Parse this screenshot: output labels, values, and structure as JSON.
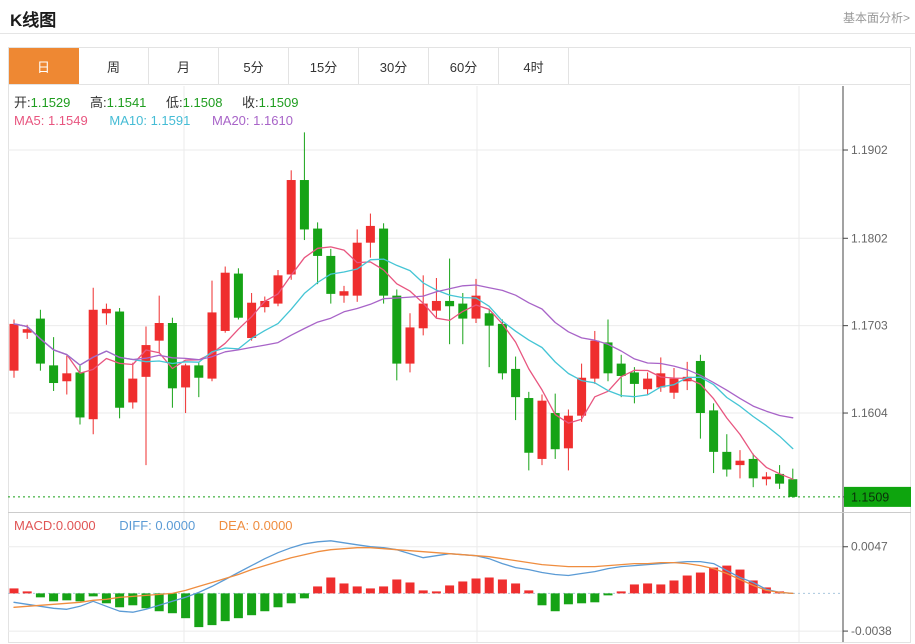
{
  "header": {
    "title": "K线图",
    "link_label": "基本面分析>"
  },
  "tabs": [
    {
      "label": "日",
      "active": true
    },
    {
      "label": "周",
      "active": false
    },
    {
      "label": "月",
      "active": false
    },
    {
      "label": "5分",
      "active": false
    },
    {
      "label": "15分",
      "active": false
    },
    {
      "label": "30分",
      "active": false
    },
    {
      "label": "60分",
      "active": false
    },
    {
      "label": "4时",
      "active": false
    }
  ],
  "ohlc": {
    "open_label": "开:",
    "open": "1.1529",
    "high_label": "高:",
    "high": "1.1541",
    "low_label": "低:",
    "low": "1.1508",
    "close_label": "收:",
    "close": "1.1509"
  },
  "ma": {
    "ma5_label": "MA5:",
    "ma5": "1.1549",
    "ma10_label": "MA10:",
    "ma10": "1.1591",
    "ma20_label": "MA20:",
    "ma20": "1.1610"
  },
  "macd_header": {
    "macd_label": "MACD:",
    "macd": "0.0000",
    "diff_label": "DIFF:",
    "diff": "0.0000",
    "dea_label": "DEA:",
    "dea": "0.0000"
  },
  "colors": {
    "up": "#ef2e2e",
    "down": "#16a316",
    "ma5": "#e8557f",
    "ma10": "#45c5d5",
    "ma20": "#a864c8",
    "diff_line": "#5b9bd5",
    "dea_line": "#ef8d3f",
    "accent_tab": "#ee8833",
    "price_badge": "#0ea50e",
    "grid": "#ebebeb",
    "axis": "#444444",
    "tick_text": "#666666",
    "current_line": "#18a018",
    "zero_line": "#a9c7de",
    "panel_divider": "#cccccc"
  },
  "chart_data": {
    "type": "candlestick",
    "title": "K线图 (EUR/USD daily K-line with MACD)",
    "legend_position": "top-left",
    "grid": true,
    "main": {
      "type": "candlestick",
      "ylim": [
        1.1493,
        1.197
      ],
      "yticks": [
        1.1902,
        1.1802,
        1.1703,
        1.1604
      ],
      "current_price": 1.1509,
      "current_price_label": "1.1509",
      "ma_periods": [
        5,
        10,
        20
      ],
      "time_gridlines_x": [
        184,
        477,
        799
      ],
      "candles": [
        [
          1.1652,
          1.171,
          1.1644,
          1.1705
        ],
        [
          1.1695,
          1.1704,
          1.1688,
          1.1699
        ],
        [
          1.1711,
          1.1721,
          1.1652,
          1.166
        ],
        [
          1.1658,
          1.169,
          1.1629,
          1.1638
        ],
        [
          1.164,
          1.1669,
          1.1625,
          1.1649
        ],
        [
          1.165,
          1.1659,
          1.1591,
          1.1599
        ],
        [
          1.1597,
          1.1746,
          1.158,
          1.1721
        ],
        [
          1.1717,
          1.1728,
          1.1704,
          1.1722
        ],
        [
          1.1719,
          1.1723,
          1.1598,
          1.161
        ],
        [
          1.1616,
          1.1661,
          1.1609,
          1.1643
        ],
        [
          1.1645,
          1.1702,
          1.1545,
          1.1681
        ],
        [
          1.1686,
          1.1737,
          1.1672,
          1.1706
        ],
        [
          1.1706,
          1.1712,
          1.161,
          1.1632
        ],
        [
          1.1633,
          1.166,
          1.1604,
          1.1658
        ],
        [
          1.1658,
          1.1662,
          1.1622,
          1.1644
        ],
        [
          1.1643,
          1.1754,
          1.164,
          1.1718
        ],
        [
          1.1697,
          1.177,
          1.1695,
          1.1763
        ],
        [
          1.1762,
          1.1768,
          1.171,
          1.1712
        ],
        [
          1.1689,
          1.174,
          1.1686,
          1.1729
        ],
        [
          1.1724,
          1.1736,
          1.1718,
          1.1731
        ],
        [
          1.1728,
          1.1766,
          1.1725,
          1.176
        ],
        [
          1.1761,
          1.1879,
          1.1755,
          1.1868
        ],
        [
          1.1868,
          1.1922,
          1.18,
          1.1812
        ],
        [
          1.1813,
          1.182,
          1.175,
          1.1782
        ],
        [
          1.1782,
          1.179,
          1.1728,
          1.1739
        ],
        [
          1.1737,
          1.1748,
          1.1729,
          1.1742
        ],
        [
          1.1737,
          1.1812,
          1.173,
          1.1797
        ],
        [
          1.1797,
          1.183,
          1.178,
          1.1816
        ],
        [
          1.1813,
          1.1819,
          1.1728,
          1.1737
        ],
        [
          1.1737,
          1.1744,
          1.1641,
          1.166
        ],
        [
          1.166,
          1.1717,
          1.165,
          1.1701
        ],
        [
          1.17,
          1.176,
          1.1692,
          1.1728
        ],
        [
          1.172,
          1.1757,
          1.1712,
          1.1731
        ],
        [
          1.1731,
          1.1779,
          1.1682,
          1.1725
        ],
        [
          1.1728,
          1.174,
          1.1682,
          1.1711
        ],
        [
          1.1711,
          1.1756,
          1.1706,
          1.1737
        ],
        [
          1.1717,
          1.1722,
          1.1656,
          1.1703
        ],
        [
          1.1705,
          1.171,
          1.1642,
          1.1649
        ],
        [
          1.1654,
          1.1668,
          1.1596,
          1.1622
        ],
        [
          1.1621,
          1.1628,
          1.1539,
          1.1559
        ],
        [
          1.1552,
          1.1625,
          1.1545,
          1.1618
        ],
        [
          1.1604,
          1.1626,
          1.1552,
          1.1563
        ],
        [
          1.1564,
          1.1608,
          1.1539,
          1.1601
        ],
        [
          1.1601,
          1.166,
          1.1594,
          1.1644
        ],
        [
          1.1643,
          1.1697,
          1.1637,
          1.1686
        ],
        [
          1.1684,
          1.171,
          1.164,
          1.1649
        ],
        [
          1.166,
          1.167,
          1.1622,
          1.1646
        ],
        [
          1.165,
          1.1656,
          1.1615,
          1.1637
        ],
        [
          1.1631,
          1.165,
          1.1625,
          1.1643
        ],
        [
          1.1633,
          1.1667,
          1.1628,
          1.1649
        ],
        [
          1.1627,
          1.1655,
          1.162,
          1.1643
        ],
        [
          1.164,
          1.1662,
          1.163,
          1.1645
        ],
        [
          1.1663,
          1.167,
          1.1575,
          1.1604
        ],
        [
          1.1607,
          1.1615,
          1.1536,
          1.156
        ],
        [
          1.156,
          1.158,
          1.1532,
          1.154
        ],
        [
          1.1545,
          1.1562,
          1.153,
          1.155
        ],
        [
          1.1552,
          1.1558,
          1.152,
          1.153
        ],
        [
          1.1529,
          1.1537,
          1.1522,
          1.1532
        ],
        [
          1.1535,
          1.1545,
          1.1518,
          1.1524
        ],
        [
          1.1529,
          1.1541,
          1.1508,
          1.1509
        ]
      ]
    },
    "macd": {
      "type": "bar+line",
      "unit": 0.0001,
      "ylim_units": [
        -48,
        79
      ],
      "yticks_units": [
        47,
        -38
      ],
      "hist": [
        5,
        2,
        -4,
        -8,
        -7,
        -8,
        -3,
        -10,
        -14,
        -12,
        -15,
        -18,
        -20,
        -25,
        -34,
        -32,
        -28,
        -25,
        -22,
        -18,
        -14,
        -10,
        -5,
        7,
        16,
        10,
        7,
        5,
        7,
        14,
        11,
        3,
        2,
        8,
        12,
        15,
        16,
        14,
        10,
        3,
        -12,
        -18,
        -11,
        -10,
        -9,
        -2,
        2,
        9,
        10,
        9,
        13,
        18,
        21,
        26,
        28,
        24,
        13,
        6,
        2,
        0
      ],
      "diff": [
        -9,
        -11,
        -13,
        -15,
        -16,
        -13,
        -8,
        -13,
        -18,
        -19,
        -16,
        -12,
        -8,
        -4,
        1,
        7,
        14,
        21,
        28,
        35,
        41,
        46,
        50,
        52,
        53,
        51,
        49,
        47,
        46,
        44,
        40,
        36,
        38,
        40,
        39,
        38,
        35,
        30,
        26,
        24,
        21,
        19,
        18,
        20,
        22,
        25,
        27,
        28,
        29,
        30,
        31,
        32,
        32,
        30,
        23,
        16,
        11,
        4,
        1,
        0
      ],
      "dea": [
        -14,
        -13,
        -12,
        -11,
        -10,
        -9,
        -7,
        -6,
        -4,
        -3,
        -2,
        -1,
        0,
        3,
        7,
        11,
        15,
        19,
        24,
        28,
        32,
        36,
        39,
        42,
        44,
        45,
        46,
        46,
        45,
        44,
        43,
        42,
        41,
        40,
        39,
        38,
        37,
        35,
        33,
        31,
        29,
        28,
        27,
        27,
        27,
        28,
        29,
        30,
        30,
        31,
        31,
        30,
        28,
        25,
        20,
        14,
        8,
        3,
        1,
        0
      ]
    }
  }
}
